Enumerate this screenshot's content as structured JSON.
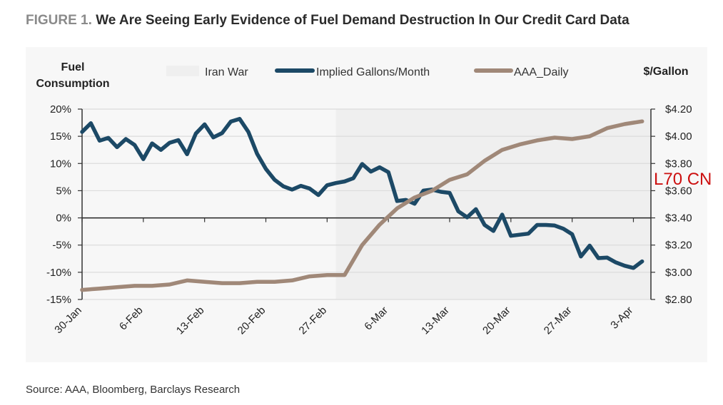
{
  "figure": {
    "label": "FIGURE 1.",
    "title": "We Are Seeing Early Evidence of Fuel Demand Destruction In Our Credit Card Data",
    "source": "Source: AAA, Bloomberg, Barclays Research",
    "stamp": "L70 CN"
  },
  "chart_data": {
    "type": "line",
    "y_left_label": [
      "Fuel",
      "Consumption"
    ],
    "y_right_label": "$/Gallon",
    "y_left_ticks": [
      "20%",
      "15%",
      "10%",
      "5%",
      "0%",
      "-5%",
      "-10%",
      "-15%"
    ],
    "y_right_ticks": [
      "$4.20",
      "$4.00",
      "$3.80",
      "$3.60",
      "$3.40",
      "$3.20",
      "$3.00",
      "$2.80"
    ],
    "y_left_range": [
      -15,
      20
    ],
    "y_right_range": [
      2.8,
      4.2
    ],
    "x_range": [
      "2026-01-30",
      "2026-04-05"
    ],
    "x_ticks": [
      "30-Jan",
      "6-Feb",
      "13-Feb",
      "20-Feb",
      "27-Feb",
      "6-Mar",
      "13-Mar",
      "20-Mar",
      "27-Mar",
      "3-Apr"
    ],
    "x_tick_dates": [
      "2026-01-30",
      "2026-02-06",
      "2026-02-13",
      "2026-02-20",
      "2026-02-27",
      "2026-03-06",
      "2026-03-13",
      "2026-03-20",
      "2026-03-27",
      "2026-04-03"
    ],
    "shaded_region": {
      "name": "Iran War",
      "start": "2026-02-28",
      "end": "2026-04-05",
      "color": "#efefef"
    },
    "legend": [
      "Iran War",
      "Implied Gallons/Month",
      "AAA_Daily"
    ],
    "series": [
      {
        "name": "Implied Gallons/Month",
        "axis": "left",
        "color": "#1c4966",
        "x": [
          "2026-01-30",
          "2026-01-31",
          "2026-02-01",
          "2026-02-02",
          "2026-02-03",
          "2026-02-04",
          "2026-02-05",
          "2026-02-06",
          "2026-02-07",
          "2026-02-08",
          "2026-02-09",
          "2026-02-10",
          "2026-02-11",
          "2026-02-12",
          "2026-02-13",
          "2026-02-14",
          "2026-02-15",
          "2026-02-16",
          "2026-02-17",
          "2026-02-18",
          "2026-02-19",
          "2026-02-20",
          "2026-02-21",
          "2026-02-22",
          "2026-02-23",
          "2026-02-24",
          "2026-02-25",
          "2026-02-26",
          "2026-02-27",
          "2026-02-28",
          "2026-03-01",
          "2026-03-02",
          "2026-03-03",
          "2026-03-04",
          "2026-03-05",
          "2026-03-06",
          "2026-03-07",
          "2026-03-08",
          "2026-03-09",
          "2026-03-10",
          "2026-03-11",
          "2026-03-12",
          "2026-03-13",
          "2026-03-14",
          "2026-03-15",
          "2026-03-16",
          "2026-03-17",
          "2026-03-18",
          "2026-03-19",
          "2026-03-20",
          "2026-03-22",
          "2026-03-23",
          "2026-03-24",
          "2026-03-25",
          "2026-03-26",
          "2026-03-27",
          "2026-03-28",
          "2026-03-29",
          "2026-03-30",
          "2026-03-31",
          "2026-04-01",
          "2026-04-02",
          "2026-04-03",
          "2026-04-04"
        ],
        "values": [
          15.8,
          17.4,
          14.2,
          14.7,
          13.0,
          14.5,
          13.4,
          10.8,
          13.7,
          12.5,
          13.8,
          14.3,
          11.7,
          15.5,
          17.2,
          14.8,
          15.6,
          17.7,
          18.2,
          15.8,
          11.8,
          9.0,
          7.0,
          5.8,
          5.2,
          5.9,
          5.4,
          4.2,
          6.0,
          6.4,
          6.7,
          7.3,
          9.9,
          8.5,
          9.3,
          8.4,
          3.1,
          3.3,
          2.6,
          5.0,
          5.2,
          4.8,
          4.6,
          1.2,
          0.1,
          1.6,
          -1.3,
          -2.4,
          0.6,
          -3.3,
          -2.9,
          -1.3,
          -1.3,
          -1.4,
          -2.0,
          -3.0,
          -7.1,
          -5.1,
          -7.4,
          -7.3,
          -8.2,
          -8.8,
          -9.2,
          -8.0
        ]
      },
      {
        "name": "AAA_Daily",
        "axis": "right",
        "color": "#a08878",
        "x": [
          "2026-01-30",
          "2026-02-01",
          "2026-02-03",
          "2026-02-05",
          "2026-02-07",
          "2026-02-09",
          "2026-02-11",
          "2026-02-13",
          "2026-02-15",
          "2026-02-17",
          "2026-02-19",
          "2026-02-21",
          "2026-02-23",
          "2026-02-25",
          "2026-02-27",
          "2026-03-01",
          "2026-03-03",
          "2026-03-05",
          "2026-03-07",
          "2026-03-09",
          "2026-03-11",
          "2026-03-13",
          "2026-03-15",
          "2026-03-17",
          "2026-03-19",
          "2026-03-21",
          "2026-03-23",
          "2026-03-25",
          "2026-03-27",
          "2026-03-29",
          "2026-03-31",
          "2026-04-02",
          "2026-04-04"
        ],
        "values": [
          2.87,
          2.88,
          2.89,
          2.9,
          2.9,
          2.91,
          2.94,
          2.93,
          2.92,
          2.92,
          2.93,
          2.93,
          2.94,
          2.97,
          2.98,
          2.98,
          3.2,
          3.35,
          3.47,
          3.55,
          3.6,
          3.68,
          3.72,
          3.82,
          3.9,
          3.94,
          3.97,
          3.99,
          3.98,
          4.0,
          4.06,
          4.09,
          4.11
        ]
      }
    ]
  }
}
